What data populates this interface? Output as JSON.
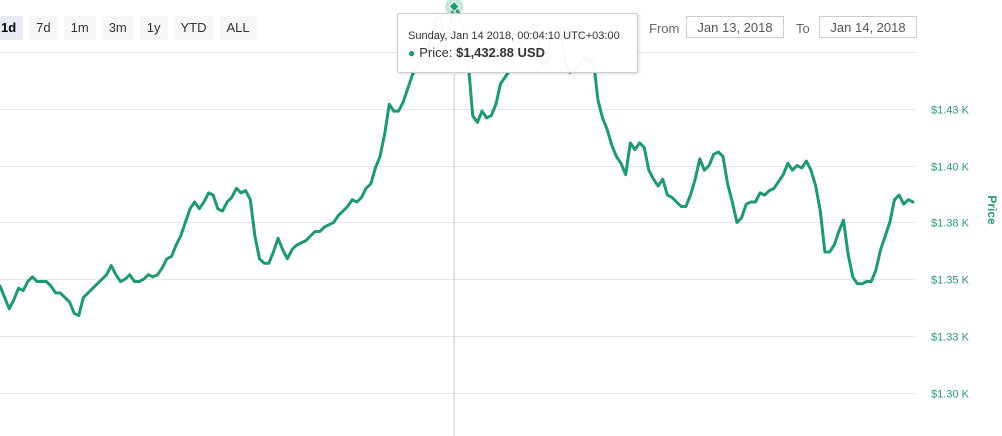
{
  "range_selector": {
    "buttons": [
      {
        "label": "1d",
        "active": true
      },
      {
        "label": "7d",
        "active": false
      },
      {
        "label": "1m",
        "active": false
      },
      {
        "label": "3m",
        "active": false
      },
      {
        "label": "1y",
        "active": false
      },
      {
        "label": "YTD",
        "active": false
      },
      {
        "label": "ALL",
        "active": false
      }
    ]
  },
  "date_range": {
    "from_label": "From",
    "from_value": "Jan 13, 2018",
    "to_label": "To",
    "to_value": "Jan 14, 2018"
  },
  "tooltip": {
    "date": "Sunday, Jan 14 2018, 00:04:10 UTC+03:00",
    "series_label": "Price:",
    "value": "$1,432.88 USD"
  },
  "colors": {
    "series": "#1e9a6c",
    "axis_text": "#2a9a6a"
  },
  "chart_data": {
    "type": "line",
    "ylabel": "Price",
    "y_tick_labels": [
      "$1.43 K",
      "$1.40 K",
      "$1.38 K",
      "$1.35 K",
      "$1.33 K",
      "$1.30 K"
    ],
    "y_tick_values": [
      1425,
      1400,
      1375,
      1350,
      1325,
      1300
    ],
    "ylim": [
      1281,
      1450
    ],
    "grid": true,
    "series": [
      {
        "values": [
          1347,
          1342,
          1337,
          1341,
          1346,
          1345,
          1349,
          1351,
          1349,
          1349,
          1349,
          1347,
          1344,
          1344,
          1342,
          1340,
          1335,
          1334,
          1342,
          1344,
          1346,
          1348,
          1350,
          1352,
          1356,
          1352,
          1349,
          1350,
          1352,
          1349,
          1349,
          1350,
          1352,
          1351,
          1352,
          1355,
          1359,
          1360,
          1365,
          1369,
          1375,
          1381,
          1384,
          1381,
          1384,
          1388,
          1387,
          1381,
          1380,
          1384,
          1386,
          1390,
          1388,
          1389,
          1385,
          1369,
          1359,
          1357,
          1357,
          1362,
          1368,
          1363,
          1359,
          1363,
          1365,
          1366,
          1367,
          1369,
          1371,
          1371,
          1373,
          1374,
          1375,
          1378,
          1380,
          1382,
          1385,
          1384,
          1386,
          1390,
          1392,
          1399,
          1404,
          1414,
          1427,
          1424,
          1424,
          1428,
          1434,
          1440,
          1444,
          1446,
          1450,
          1456,
          1464,
          1465,
          1453,
          1462,
          1470,
          1467,
          1460,
          1446,
          1422,
          1419,
          1424,
          1421,
          1422,
          1427,
          1436,
          1439,
          1442,
          1447,
          1452,
          1455,
          1459,
          1462,
          1457,
          1444,
          1446,
          1458,
          1461,
          1458,
          1446,
          1441,
          1442,
          1444,
          1448,
          1446,
          1447,
          1429,
          1421,
          1416,
          1409,
          1404,
          1401,
          1396,
          1410,
          1407,
          1410,
          1408,
          1398,
          1394,
          1391,
          1394,
          1387,
          1386,
          1384,
          1382,
          1382,
          1387,
          1394,
          1403,
          1398,
          1400,
          1405,
          1406,
          1404,
          1392,
          1384,
          1375,
          1377,
          1383,
          1384,
          1384,
          1388,
          1387,
          1389,
          1390,
          1393,
          1396,
          1401,
          1398,
          1400,
          1399,
          1402,
          1398,
          1391,
          1380,
          1362,
          1362,
          1365,
          1371,
          1376,
          1361,
          1351,
          1348,
          1348,
          1349,
          1349,
          1354,
          1363,
          1369,
          1375,
          1385,
          1387,
          1383,
          1385,
          1384
        ]
      }
    ]
  }
}
